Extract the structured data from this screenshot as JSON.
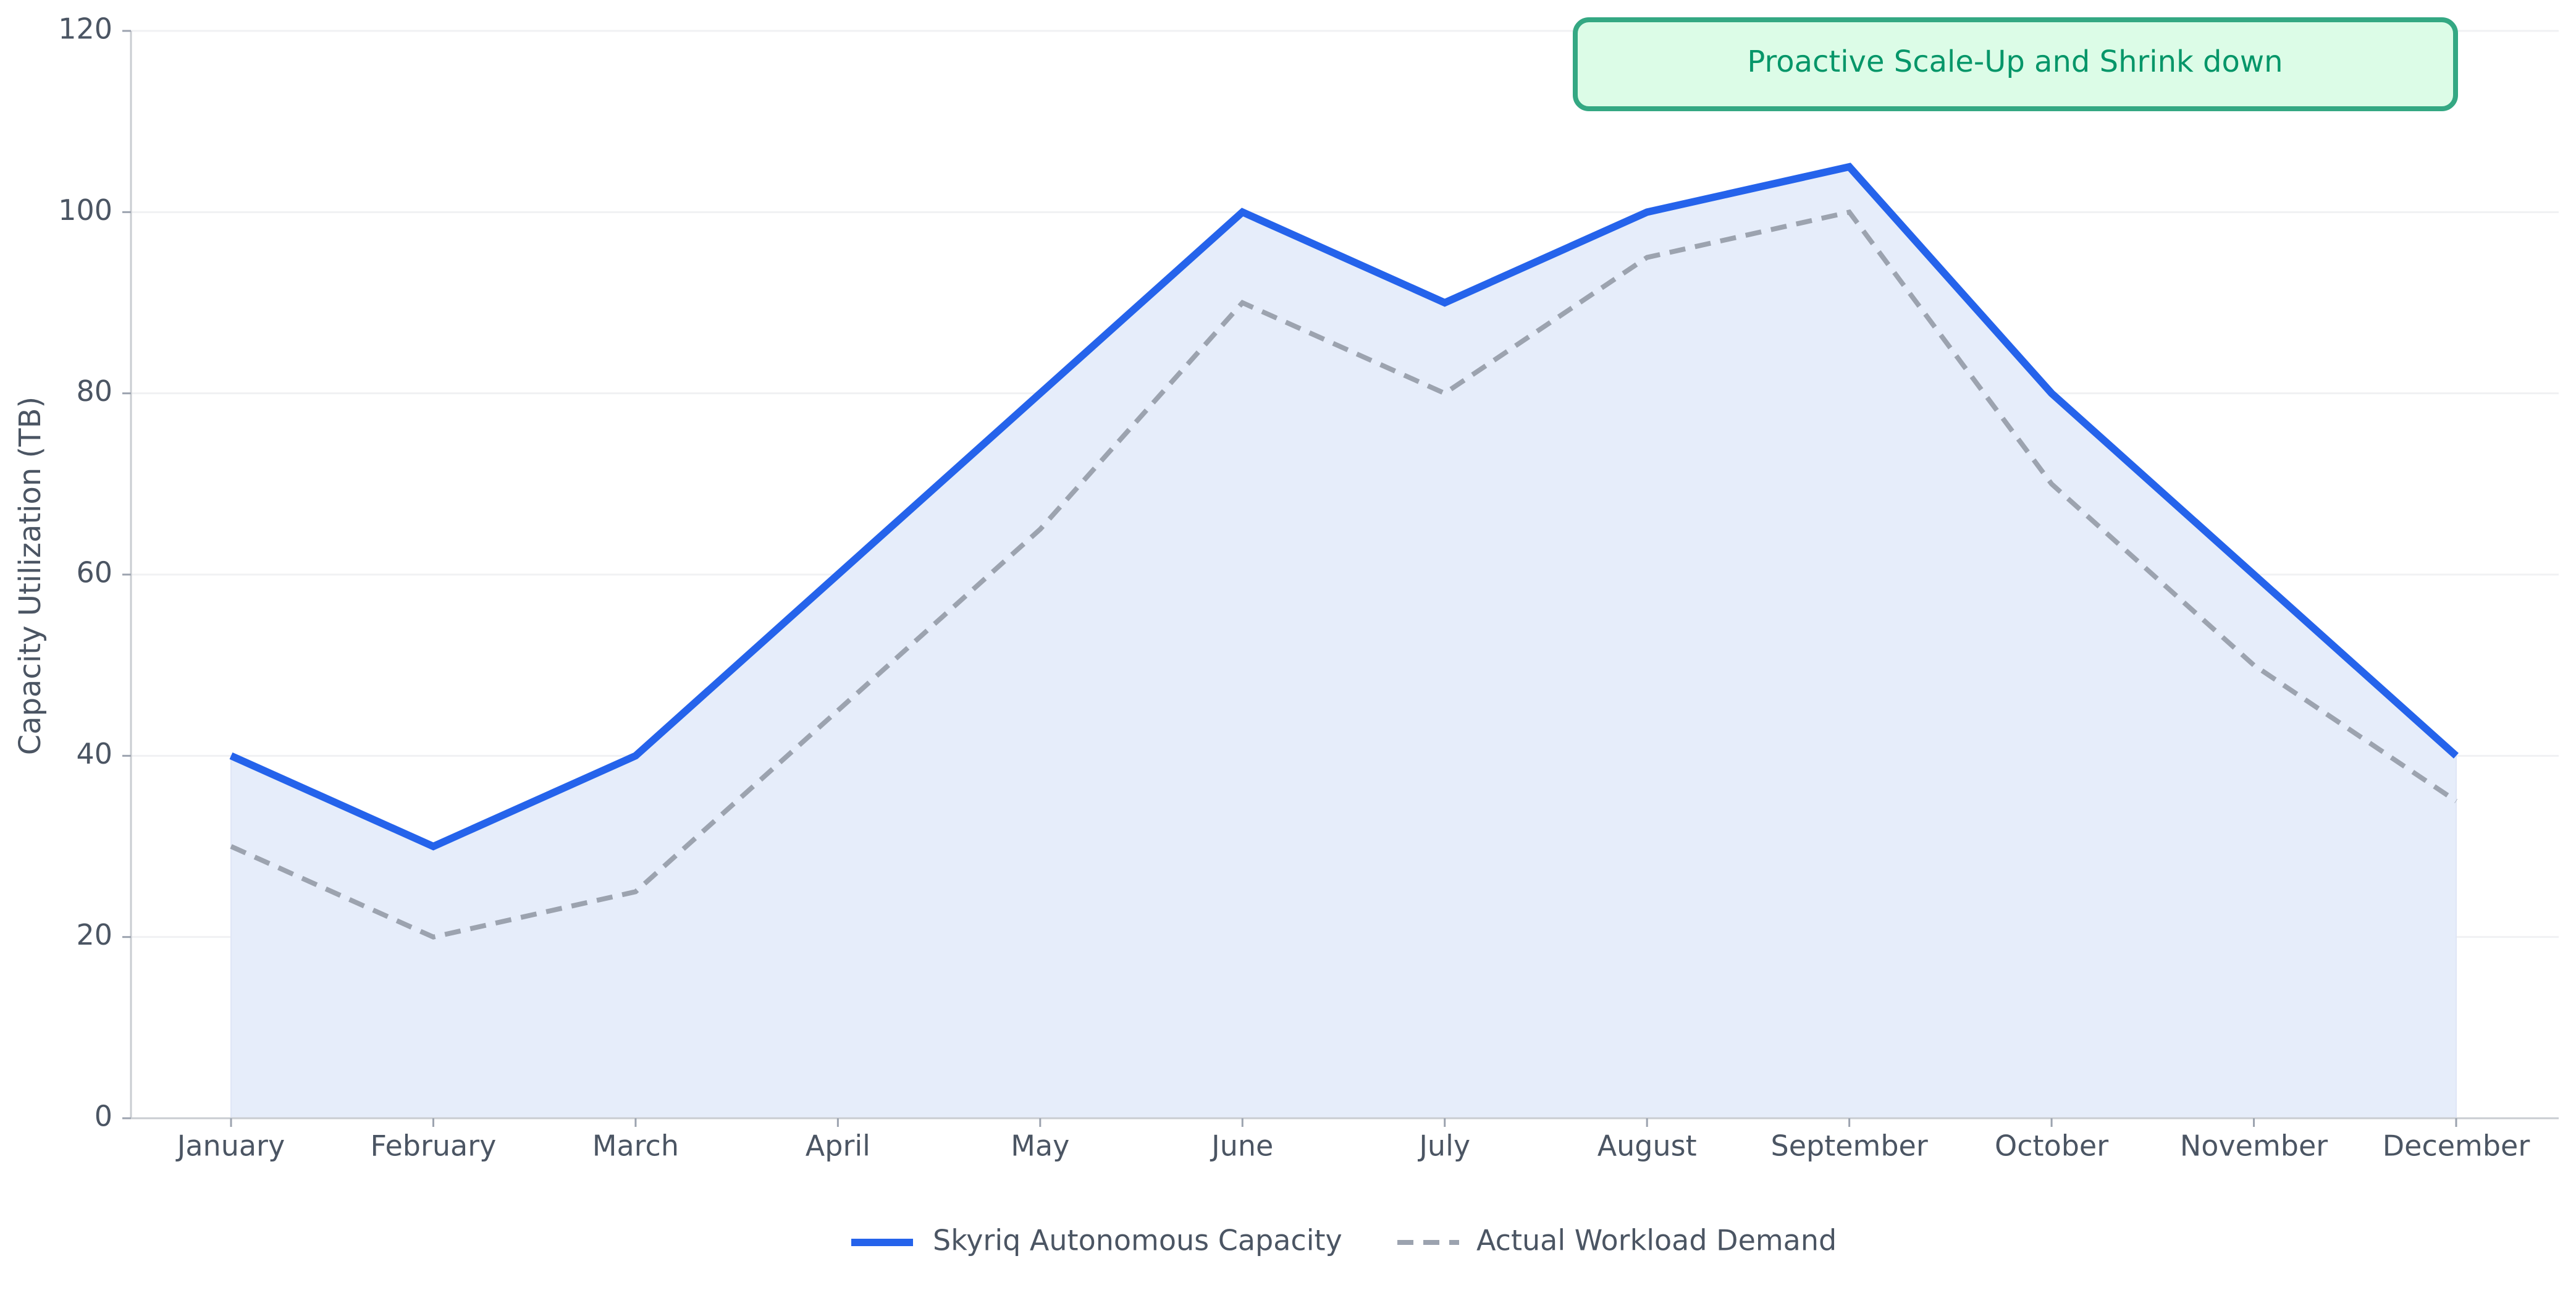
{
  "chart_data": {
    "type": "area",
    "title": "",
    "xlabel": "",
    "ylabel": "Capacity Utilization (TB)",
    "categories": [
      "January",
      "February",
      "March",
      "April",
      "May",
      "June",
      "July",
      "August",
      "September",
      "October",
      "November",
      "December"
    ],
    "series": [
      {
        "name": "Skyriq Autonomous Capacity",
        "values": [
          40,
          30,
          40,
          60,
          80,
          100,
          90,
          100,
          105,
          80,
          60,
          40
        ],
        "color": "#2563eb",
        "style": "solid",
        "fill": "#e6edfa"
      },
      {
        "name": "Actual Workload Demand",
        "values": [
          30,
          20,
          25,
          45,
          65,
          90,
          80,
          95,
          100,
          70,
          50,
          35
        ],
        "color": "#9ca3af",
        "style": "dashed"
      }
    ],
    "ylim": [
      0,
      120
    ],
    "yticks": [
      0,
      20,
      40,
      60,
      80,
      100,
      120
    ],
    "grid": "horizontal",
    "legend_position": "bottom-center",
    "annotation": {
      "text": "Proactive Scale-Up and Shrink down",
      "text_color": "#059669",
      "border_color": "#34a883",
      "background": "#dcfce7"
    }
  }
}
